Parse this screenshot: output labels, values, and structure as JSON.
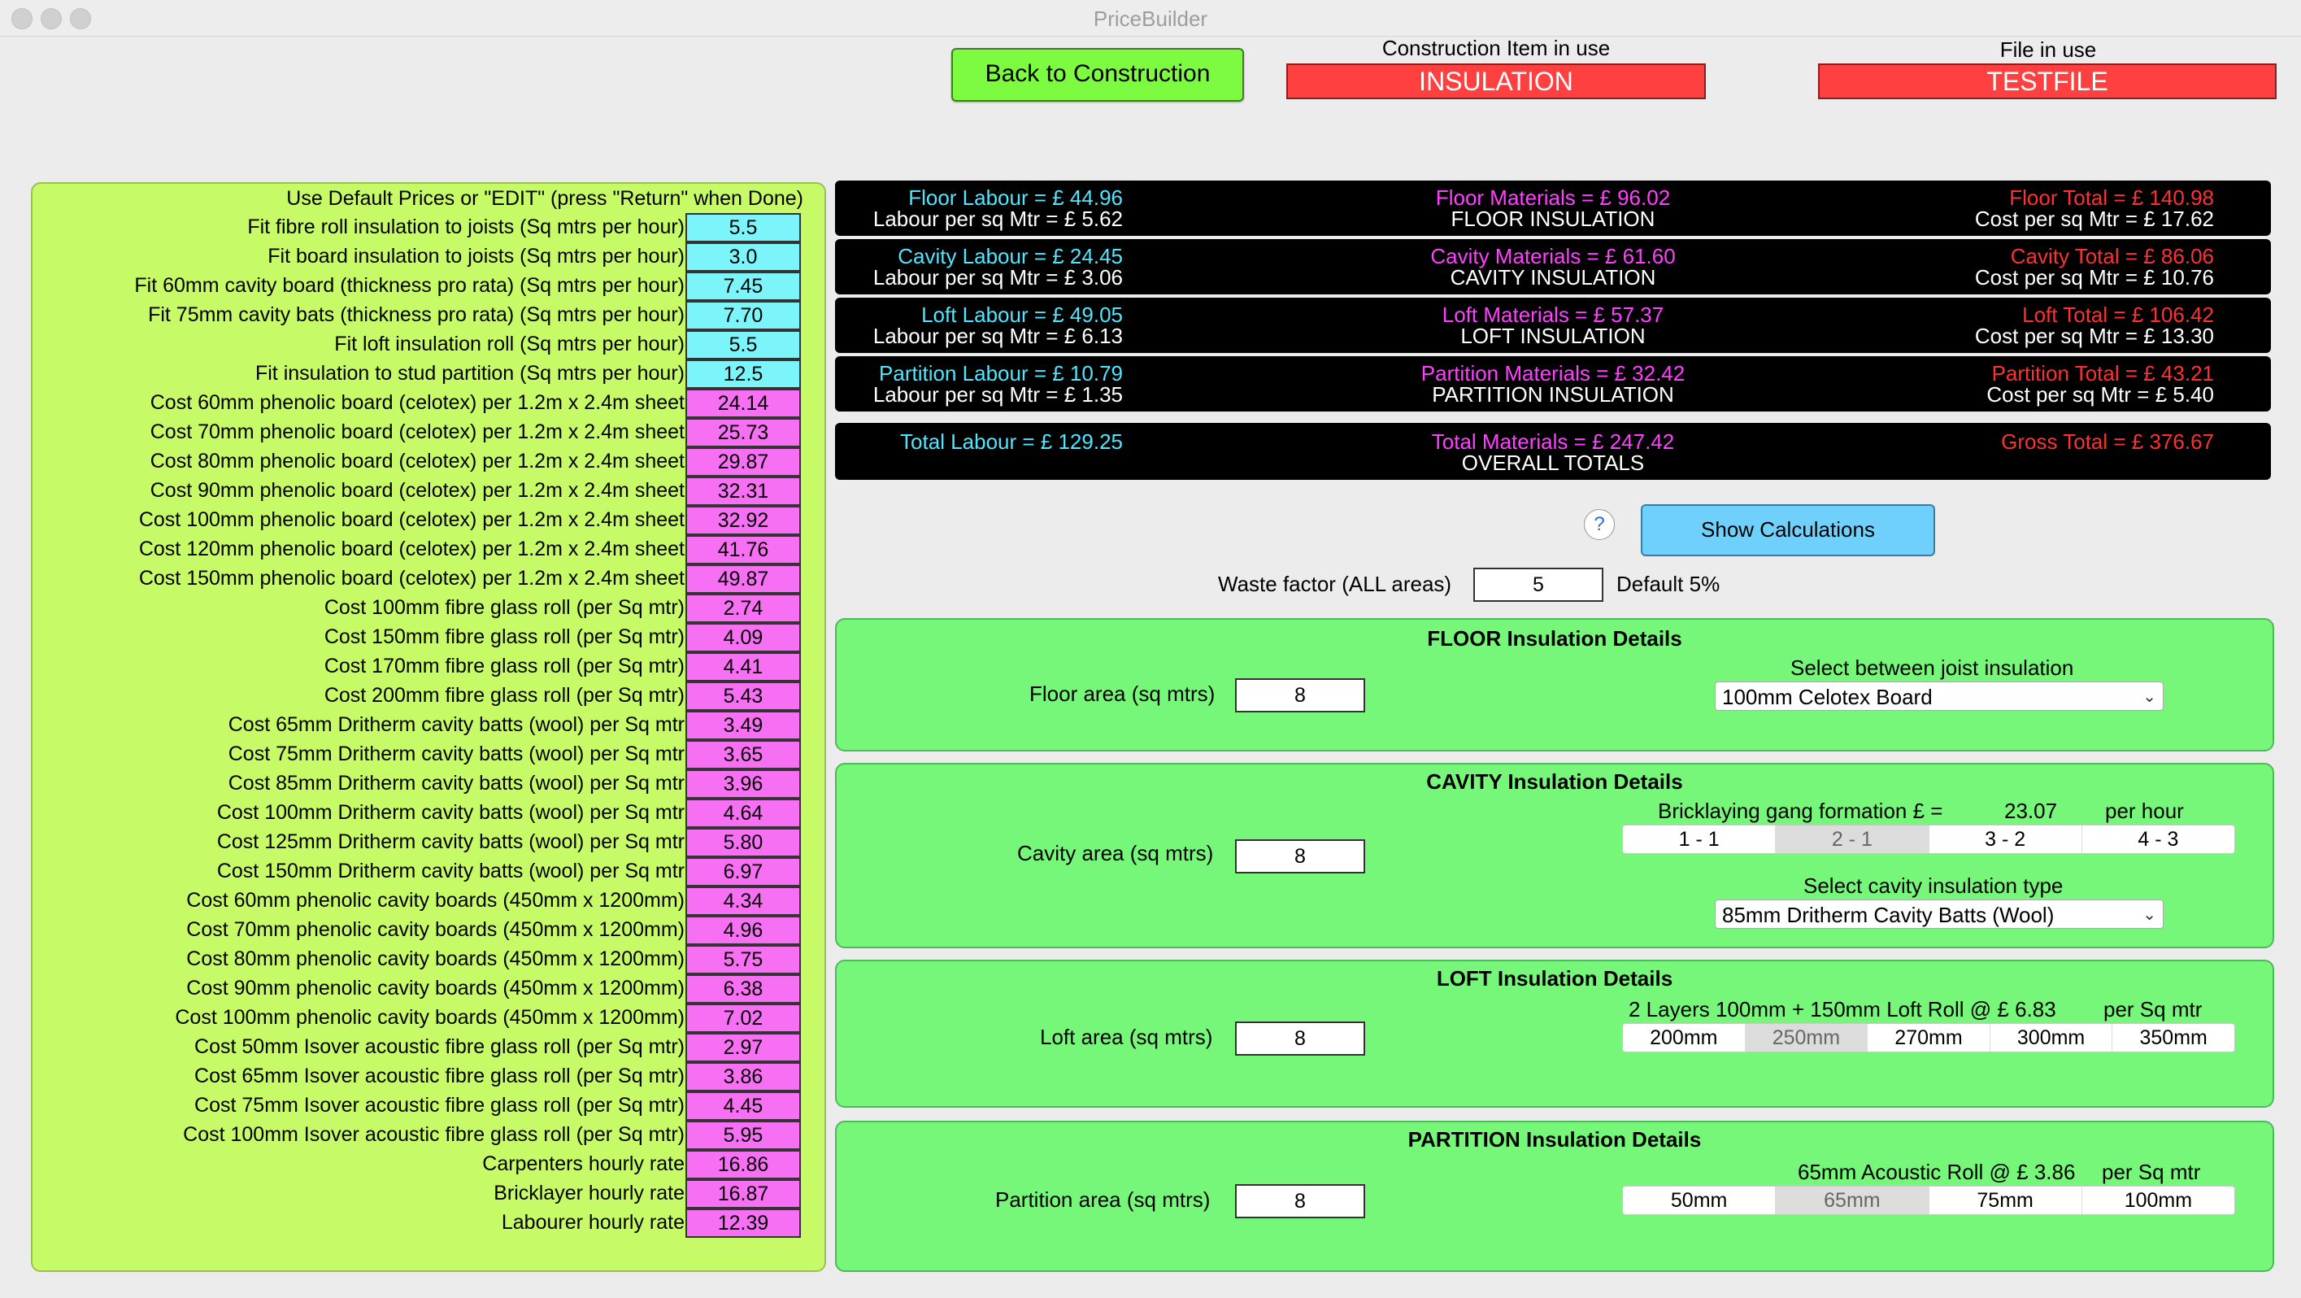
{
  "window": {
    "title": "PriceBuilder"
  },
  "header": {
    "back_button": "Back to Construction",
    "construction_caption": "Construction Item in use",
    "construction_value": "INSULATION",
    "file_caption": "File in use",
    "file_value": "TESTFILE"
  },
  "prices": {
    "heading": "Use Default Prices or     \"EDIT\"   (press \"Return\" when Done)",
    "items": [
      {
        "label": "Fit fibre roll insulation to joists (Sq mtrs per hour)",
        "value": "5.5",
        "kind": "rate"
      },
      {
        "label": "Fit board insulation to joists (Sq mtrs per hour)",
        "value": "3.0",
        "kind": "rate"
      },
      {
        "label": "Fit 60mm cavity board (thickness pro rata) (Sq mtrs per hour)",
        "value": "7.45",
        "kind": "rate"
      },
      {
        "label": "Fit 75mm cavity bats (thickness pro rata) (Sq mtrs per hour)",
        "value": "7.70",
        "kind": "rate"
      },
      {
        "label": "Fit loft insulation roll (Sq mtrs per hour)",
        "value": "5.5",
        "kind": "rate"
      },
      {
        "label": "Fit insulation to stud partition (Sq mtrs per hour)",
        "value": "12.5",
        "kind": "rate"
      },
      {
        "label": "Cost 60mm phenolic board (celotex) per 1.2m x 2.4m sheet",
        "value": "24.14",
        "kind": "cost"
      },
      {
        "label": "Cost 70mm phenolic board (celotex) per 1.2m x 2.4m sheet",
        "value": "25.73",
        "kind": "cost"
      },
      {
        "label": "Cost 80mm phenolic board (celotex) per 1.2m x 2.4m sheet",
        "value": "29.87",
        "kind": "cost"
      },
      {
        "label": "Cost 90mm phenolic board (celotex) per 1.2m x 2.4m sheet",
        "value": "32.31",
        "kind": "cost"
      },
      {
        "label": "Cost 100mm phenolic board (celotex) per 1.2m x 2.4m sheet",
        "value": "32.92",
        "kind": "cost"
      },
      {
        "label": "Cost 120mm phenolic board (celotex) per 1.2m x 2.4m sheet",
        "value": "41.76",
        "kind": "cost"
      },
      {
        "label": "Cost 150mm phenolic board (celotex) per 1.2m x 2.4m sheet",
        "value": "49.87",
        "kind": "cost"
      },
      {
        "label": "Cost 100mm fibre glass roll (per Sq mtr)",
        "value": "2.74",
        "kind": "cost"
      },
      {
        "label": "Cost 150mm fibre glass roll (per Sq mtr)",
        "value": "4.09",
        "kind": "cost"
      },
      {
        "label": "Cost 170mm fibre glass roll (per Sq mtr)",
        "value": "4.41",
        "kind": "cost"
      },
      {
        "label": "Cost 200mm fibre glass roll (per Sq mtr)",
        "value": "5.43",
        "kind": "cost"
      },
      {
        "label": "Cost 65mm Dritherm cavity batts (wool) per Sq mtr",
        "value": "3.49",
        "kind": "cost"
      },
      {
        "label": "Cost 75mm Dritherm cavity batts (wool) per Sq mtr",
        "value": "3.65",
        "kind": "cost"
      },
      {
        "label": "Cost 85mm Dritherm cavity batts (wool) per Sq mtr",
        "value": "3.96",
        "kind": "cost"
      },
      {
        "label": "Cost 100mm Dritherm cavity batts (wool) per Sq mtr",
        "value": "4.64",
        "kind": "cost"
      },
      {
        "label": "Cost 125mm Dritherm cavity batts (wool) per Sq mtr",
        "value": "5.80",
        "kind": "cost"
      },
      {
        "label": "Cost 150mm Dritherm cavity batts (wool) per Sq mtr",
        "value": "6.97",
        "kind": "cost"
      },
      {
        "label": "Cost 60mm phenolic cavity boards (450mm x 1200mm)",
        "value": "4.34",
        "kind": "cost"
      },
      {
        "label": "Cost 70mm phenolic cavity boards (450mm x 1200mm)",
        "value": "4.96",
        "kind": "cost"
      },
      {
        "label": "Cost 80mm phenolic cavity boards (450mm x 1200mm)",
        "value": "5.75",
        "kind": "cost"
      },
      {
        "label": "Cost 90mm phenolic cavity boards (450mm x 1200mm)",
        "value": "6.38",
        "kind": "cost"
      },
      {
        "label": "Cost 100mm phenolic cavity boards (450mm x 1200mm)",
        "value": "7.02",
        "kind": "cost"
      },
      {
        "label": "Cost 50mm Isover acoustic fibre glass roll (per Sq mtr)",
        "value": "2.97",
        "kind": "cost"
      },
      {
        "label": "Cost 65mm Isover acoustic fibre glass roll (per Sq mtr)",
        "value": "3.86",
        "kind": "cost"
      },
      {
        "label": "Cost 75mm Isover acoustic fibre glass roll (per Sq mtr)",
        "value": "4.45",
        "kind": "cost"
      },
      {
        "label": "Cost 100mm Isover acoustic fibre glass roll (per Sq mtr)",
        "value": "5.95",
        "kind": "cost"
      },
      {
        "label": "Carpenters hourly rate",
        "value": "16.86",
        "kind": "cost"
      },
      {
        "label": "Bricklayer hourly rate",
        "value": "16.87",
        "kind": "cost"
      },
      {
        "label": "Labourer hourly rate",
        "value": "12.39",
        "kind": "cost"
      }
    ]
  },
  "summary": {
    "rows": [
      {
        "labour": "Floor Labour = £  44.96",
        "labour_per": "Labour per sq Mtr = £  5.62",
        "materials": "Floor Materials = £ 96.02",
        "name": "FLOOR INSULATION",
        "total": "Floor Total = £  140.98",
        "cost_per": "Cost per sq Mtr = £  17.62"
      },
      {
        "labour": "Cavity Labour = £  24.45",
        "labour_per": "Labour per sq Mtr = £  3.06",
        "materials": "Cavity Materials = £  61.60",
        "name": "CAVITY INSULATION",
        "total": "Cavity Total = £  86.06",
        "cost_per": "Cost per sq Mtr = £  10.76"
      },
      {
        "labour": "Loft Labour = £  49.05",
        "labour_per": "Labour per sq Mtr = £  6.13",
        "materials": "Loft Materials = £  57.37",
        "name": "LOFT INSULATION",
        "total": "Loft Total = £  106.42",
        "cost_per": "Cost per sq Mtr = £  13.30"
      },
      {
        "labour": "Partition Labour = £  10.79",
        "labour_per": "Labour per sq Mtr = £  1.35",
        "materials": "Partition Materials = £  32.42",
        "name": "PARTITION INSULATION",
        "total": "Partition Total = £  43.21",
        "cost_per": "Cost per sq Mtr = £  5.40"
      }
    ],
    "overall": {
      "labour": "Total Labour = £  129.25",
      "materials": "Total Materials = £  247.42",
      "name": "OVERALL TOTALS",
      "total": "Gross Total = £  376.67"
    }
  },
  "controls": {
    "help": "?",
    "show_calculations": "Show Calculations",
    "waste_label": "Waste factor (ALL areas)",
    "waste_value": "5",
    "waste_default": "Default 5%"
  },
  "floor": {
    "title": "FLOOR Insulation Details",
    "area_label": "Floor area (sq mtrs)",
    "area_value": "8",
    "select_label": "Select between joist insulation",
    "select_value": "100mm Celotex Board"
  },
  "cavity": {
    "title": "CAVITY Insulation Details",
    "area_label": "Cavity area (sq mtrs)",
    "area_value": "8",
    "gang_label": "Bricklaying gang formation £ =",
    "gang_value": "23.07",
    "gang_unit": "per hour",
    "gang_options": [
      "1 - 1",
      "2 - 1",
      "3 - 2",
      "4 - 3"
    ],
    "gang_selected": "2 - 1",
    "select_label": "Select cavity insulation type",
    "select_value": "85mm Dritherm Cavity Batts (Wool)"
  },
  "loft": {
    "title": "LOFT Insulation Details",
    "area_label": "Loft area (sq mtrs)",
    "area_value": "8",
    "info": "2 Layers 100mm + 150mm Loft Roll @ £ 6.83",
    "info_unit": "per Sq mtr",
    "options": [
      "200mm",
      "250mm",
      "270mm",
      "300mm",
      "350mm"
    ],
    "selected": "250mm"
  },
  "partition": {
    "title": "PARTITION Insulation Details",
    "area_label": "Partition area (sq mtrs)",
    "area_value": "8",
    "info": "65mm Acoustic Roll @ £ 3.86",
    "info_unit": "per Sq mtr",
    "options": [
      "50mm",
      "65mm",
      "75mm",
      "100mm"
    ],
    "selected": "65mm"
  },
  "colors": {
    "cyan": "#7cf5fa",
    "pink": "#f76ff2",
    "lime": "#c6fa66",
    "green": "#77f77a",
    "red": "#ff4040"
  }
}
